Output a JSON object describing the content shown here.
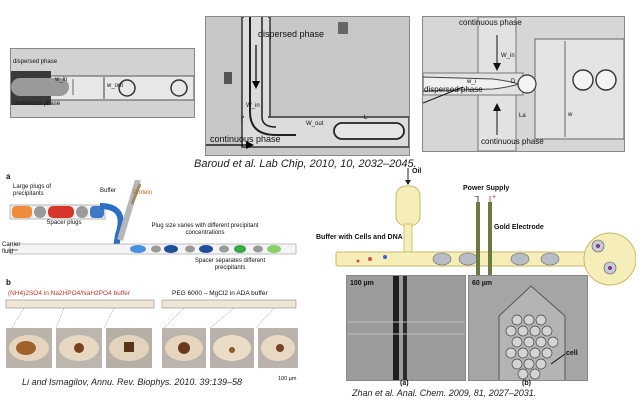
{
  "top_panels": {
    "left": {
      "dispersed": "dispersed phase",
      "continuous": "continuous phase",
      "w_in": "w_in",
      "w_out": "w_out"
    },
    "middle": {
      "dispersed": "dispersed phase",
      "continuous": "continuous phase",
      "w_in": "W_in",
      "w_out": "W_out",
      "L": "L"
    },
    "right": {
      "continuous_top": "continuous phase",
      "dispersed": "dispersed phase",
      "continuous_bottom": "continuous phase",
      "w_in": "W_in",
      "w_i": "w_i",
      "D": "D",
      "La": "La",
      "w": "w"
    }
  },
  "captions": {
    "baroud": "Baroud et al. Lab Chip, 2010, 10, 2032–2045.",
    "li": "Li and Ismagilov, Annu. Rev. Biophys. 2010. 39:139–58",
    "zhan": "Zhan et al. Anal. Chem. 2009, 81, 2027–2031."
  },
  "panel_a": {
    "letter": "a",
    "large_plugs": "Large plugs of precipitants",
    "buffer": "Buffer",
    "protein": "Protein",
    "spacer_plugs": "Spacer plugs",
    "plug_size": "Plug size varies with different precipitant concentrations",
    "carrier": "Carrier fluid",
    "spacer_sep": "Spacer separates different precipitants"
  },
  "panel_b": {
    "letter": "b",
    "left_title": "(NH4)2SO4 in Na2HPO4/NaH2PO4 buffer",
    "right_title": "PEG 6000 – MgCl2 in ADA buffer",
    "scale": "100 µm"
  },
  "zhan": {
    "oil": "Oil",
    "power": "Power Supply",
    "minus": "−",
    "plus": "+",
    "electrode": "Gold Electrode",
    "buffer": "Buffer with Cells and DNA",
    "scale_a": "100 µm",
    "scale_b": "60 µm",
    "cell": "cell",
    "label_a": "(a)",
    "label_b": "(b)"
  }
}
